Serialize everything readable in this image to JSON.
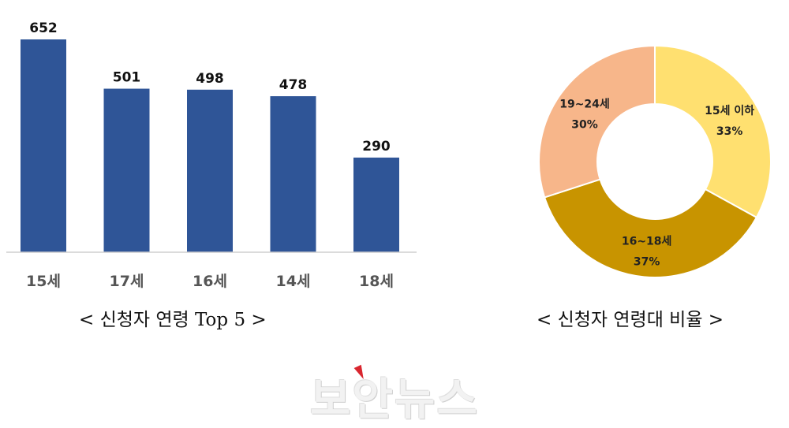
{
  "chart_data": [
    {
      "type": "bar",
      "title": "< 신청자 연령 Top 5 >",
      "categories": [
        "15세",
        "17세",
        "16세",
        "14세",
        "18세"
      ],
      "values": [
        652,
        501,
        498,
        478,
        290
      ],
      "data_labels": [
        "652",
        "501",
        "498",
        "478",
        "290"
      ],
      "ylim": [
        0,
        652
      ],
      "grid": false,
      "legend": "none",
      "color": "#2f5597"
    },
    {
      "type": "pie",
      "title": "< 신청자 연령대 비율 >",
      "donut": true,
      "slices": [
        {
          "label": "15세 이하",
          "value": 33,
          "value_label": "33%",
          "color": "#ffe070"
        },
        {
          "label": "16~18세",
          "value": 37,
          "value_label": "37%",
          "color": "#c89400"
        },
        {
          "label": "19~24세",
          "value": 30,
          "value_label": "30%",
          "color": "#f7b68a"
        }
      ]
    }
  ],
  "watermark": {
    "text": "보안뉴스",
    "accent_color": "#d9262f"
  }
}
